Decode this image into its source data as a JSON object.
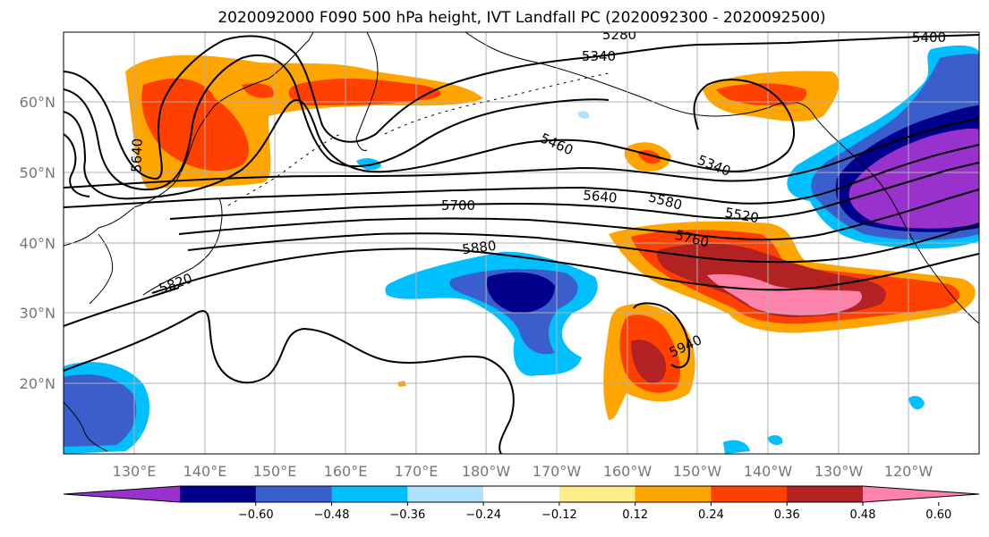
{
  "title": "2020092000 F090 500 hPa height, IVT Landfall PC (2020092300 - 2020092500)",
  "map": {
    "lon_labels": [
      "130°E",
      "140°E",
      "150°E",
      "160°E",
      "170°E",
      "180°W",
      "170°W",
      "160°W",
      "150°W",
      "140°W",
      "130°W",
      "120°W"
    ],
    "lat_labels": [
      "60°N",
      "50°N",
      "40°N",
      "30°N",
      "20°N"
    ],
    "contour_labels": [
      "5280",
      "5340",
      "5400",
      "5460",
      "5340",
      "5640",
      "5700",
      "5640",
      "5580",
      "5520",
      "5760",
      "5880",
      "5940",
      "5820"
    ]
  },
  "colorbar": {
    "ticks": [
      "−0.60",
      "−0.48",
      "−0.36",
      "−0.24",
      "−0.12",
      "0.12",
      "0.24",
      "0.36",
      "0.48",
      "0.60"
    ],
    "colors": {
      "purple": "#9932cc",
      "navy": "#00008b",
      "royal_blue": "#3a5fcd",
      "deep_sky": "#00bfff",
      "light_blue": "#b0e2ff",
      "white": "#ffffff",
      "khaki": "#ffec8b",
      "orange": "#ffa500",
      "orange_red": "#ff4000",
      "firebrick": "#b22222",
      "pink": "#ff82ab"
    }
  }
}
